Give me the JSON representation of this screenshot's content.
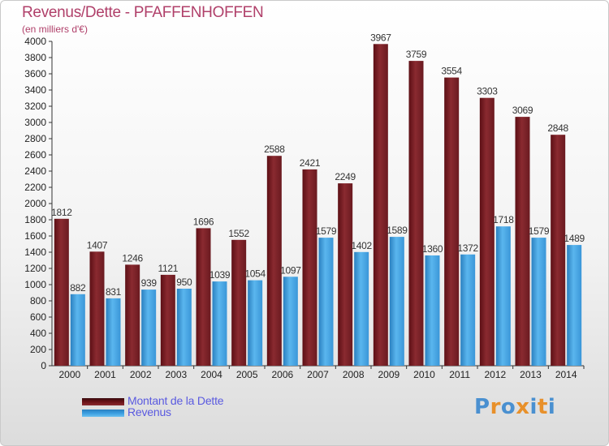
{
  "title": "Revenus/Dette - PFAFFENHOFFEN",
  "subtitle": "(en milliers d'€)",
  "colors": {
    "title": "#b0406a",
    "dette": "#7a1f27",
    "revenus": "#3a9ee0",
    "legend_text": "#5a5ae0"
  },
  "legend": [
    {
      "label": "Montant de la Dette",
      "color": "#6a1218"
    },
    {
      "label": "Revenus",
      "color": "#3a9ee0"
    }
  ],
  "logo": {
    "text": "Proxiti",
    "colors": [
      "#4a90d0",
      "#e8902a",
      "#4a90d0",
      "#e8902a",
      "#4a90d0",
      "#e8902a",
      "#4a90d0"
    ]
  },
  "chart_data": {
    "type": "bar",
    "categories": [
      "2000",
      "2001",
      "2002",
      "2003",
      "2004",
      "2005",
      "2006",
      "2007",
      "2008",
      "2009",
      "2010",
      "2011",
      "2012",
      "2013",
      "2014"
    ],
    "series": [
      {
        "name": "Montant de la Dette",
        "values": [
          1812,
          1407,
          1246,
          1121,
          1696,
          1552,
          2588,
          2421,
          2249,
          3967,
          3759,
          3554,
          3303,
          3069,
          2848
        ]
      },
      {
        "name": "Revenus",
        "values": [
          882,
          831,
          939,
          950,
          1039,
          1054,
          1097,
          1579,
          1402,
          1589,
          1360,
          1372,
          1718,
          1579,
          1489
        ]
      }
    ],
    "ylim": [
      0,
      4000
    ],
    "ytick_step": 200,
    "grid": false,
    "legend_position": "bottom-left"
  }
}
